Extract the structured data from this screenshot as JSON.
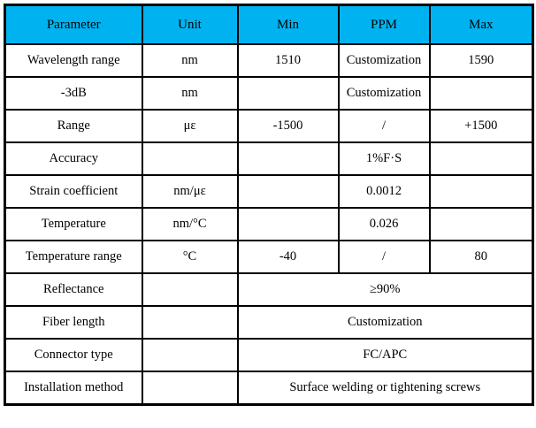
{
  "table": {
    "header_bg": "#00b3f0",
    "border_color": "#000000",
    "columns": [
      "Parameter",
      "Unit",
      "Min",
      "PPM",
      "Max"
    ],
    "rows": [
      {
        "parameter": "Wavelength range",
        "unit": "nm",
        "min": "1510",
        "ppm": "Customization",
        "max": "1590"
      },
      {
        "parameter": "-3dB",
        "unit": "nm",
        "min": "",
        "ppm": "Customization",
        "max": ""
      },
      {
        "parameter": "Range",
        "unit": "με",
        "min": "-1500",
        "ppm": "/",
        "max": "+1500"
      },
      {
        "parameter": "Accuracy",
        "unit": "",
        "min": "",
        "ppm": "1%F·S",
        "max": ""
      },
      {
        "parameter": "Strain coefficient",
        "unit": "nm/με",
        "min": "",
        "ppm": "0.0012",
        "max": ""
      },
      {
        "parameter": "Temperature",
        "unit": "nm/°C",
        "min": "",
        "ppm": "0.026",
        "max": ""
      },
      {
        "parameter": "Temperature range",
        "unit": "°C",
        "min": "-40",
        "ppm": "/",
        "max": "80"
      }
    ],
    "span_rows": [
      {
        "parameter": "Reflectance",
        "unit": "",
        "value": "≥90%"
      },
      {
        "parameter": "Fiber length",
        "unit": "",
        "value": "Customization"
      },
      {
        "parameter": "Connector type",
        "unit": "",
        "value": "FC/APC"
      },
      {
        "parameter": "Installation method",
        "unit": "",
        "value": "Surface welding or tightening screws"
      }
    ]
  }
}
